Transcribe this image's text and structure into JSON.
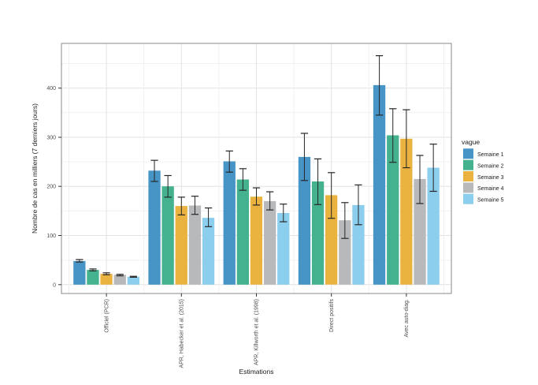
{
  "figure": {
    "background": "#ffffff"
  },
  "chart_data": {
    "type": "bar",
    "title": "",
    "xlabel": "Estimations",
    "ylabel": "Nombre de cas en milliers (7 derniers jours)",
    "legend_title": "vague",
    "legend_position": "right",
    "grid_on": true,
    "categories": [
      "Officiel (PCR)",
      "APR, Habecker et al. (2015)",
      "APR, Killworth et al. (1998)",
      "Direct positifs",
      "Avec auto-diag."
    ],
    "series": [
      {
        "name": "Semaine 1",
        "color": "#4795c6",
        "values": [
          48,
          232,
          251,
          260,
          406
        ],
        "err_low": [
          46,
          210,
          229,
          212,
          345
        ],
        "err_high": [
          51,
          253,
          272,
          308,
          466
        ]
      },
      {
        "name": "Semaine 2",
        "color": "#44b28e",
        "values": [
          30,
          200,
          214,
          210,
          304
        ],
        "err_low": [
          28,
          178,
          192,
          163,
          249
        ],
        "err_high": [
          32,
          222,
          236,
          256,
          358
        ]
      },
      {
        "name": "Semaine 3",
        "color": "#eab23f",
        "values": [
          22,
          160,
          179,
          182,
          297
        ],
        "err_low": [
          20,
          142,
          162,
          135,
          238
        ],
        "err_high": [
          24,
          178,
          197,
          228,
          356
        ]
      },
      {
        "name": "Semaine 4",
        "color": "#b7b9bb",
        "values": [
          20,
          161,
          170,
          131,
          215
        ],
        "err_low": [
          18,
          143,
          152,
          94,
          165
        ],
        "err_high": [
          21,
          180,
          189,
          167,
          263
        ]
      },
      {
        "name": "Semaine 5",
        "color": "#8cceee",
        "values": [
          16,
          136,
          146,
          162,
          238
        ],
        "err_low": [
          15,
          118,
          128,
          122,
          190
        ],
        "err_high": [
          17,
          156,
          164,
          203,
          286
        ]
      }
    ],
    "yticks": [
      0,
      100,
      200,
      300,
      400
    ],
    "ylim": [
      -18,
      491
    ],
    "grid": {
      "major_every": 100,
      "minor_every": 50,
      "major_color": "#e2e2e2",
      "minor_color": "#f0f0f0"
    },
    "colors": {
      "errorbar": "#262626",
      "panel_border": "#8a8a8a",
      "tick": "#333333",
      "tick_label": "#4d4d4d",
      "axis_title": "#1a1a1a",
      "legend_text": "#1a1a1a",
      "panel_background": "#ffffff"
    }
  }
}
